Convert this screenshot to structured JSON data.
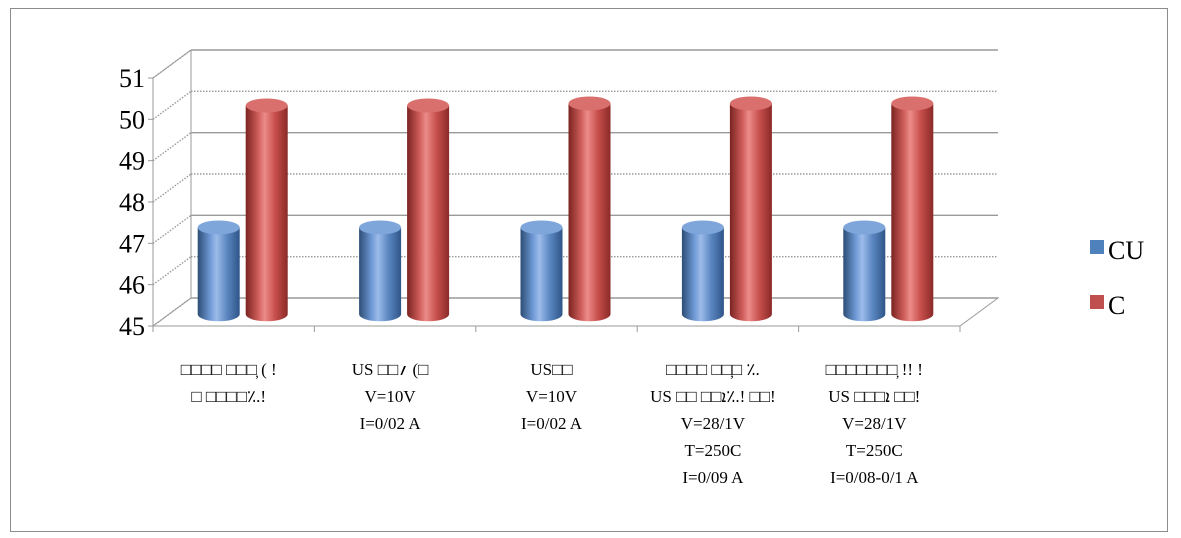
{
  "chart_data": {
    "type": "bar",
    "ylim": [
      45,
      51
    ],
    "yticks": [
      "45",
      "46",
      "47",
      "48",
      "49",
      "50",
      "51"
    ],
    "grid": true,
    "legend_position": "right",
    "categories": [
      [
        "□□□□ □□□̦   (   !",
        "□ □□□□٪.!"
      ],
      [
        "US  □□؍ (□",
        "V=10V",
        "I=0/02 A"
      ],
      [
        "US□□",
        "V=10V",
        "I=0/02 A"
      ],
      [
        "□□□□ □□□̦      ٪.",
        "US □□ □□ܐ٪.!  □□!",
        "V=28/1V",
        "T=250C",
        "I=0/09 A"
      ],
      [
        "□□□□□□□̦       !!   !",
        "US  □□□ܐ       □□!",
        "V=28/1V",
        "T=250C",
        "I=0/08-0/1 A"
      ]
    ],
    "series": [
      {
        "name": "CU",
        "values": [
          47.1,
          47.1,
          47.1,
          47.1,
          47.1
        ],
        "color": "#4f81bd"
      },
      {
        "name": "C",
        "values": [
          50.05,
          50.05,
          50.1,
          50.1,
          50.1
        ],
        "color": "#c0504d"
      }
    ]
  }
}
